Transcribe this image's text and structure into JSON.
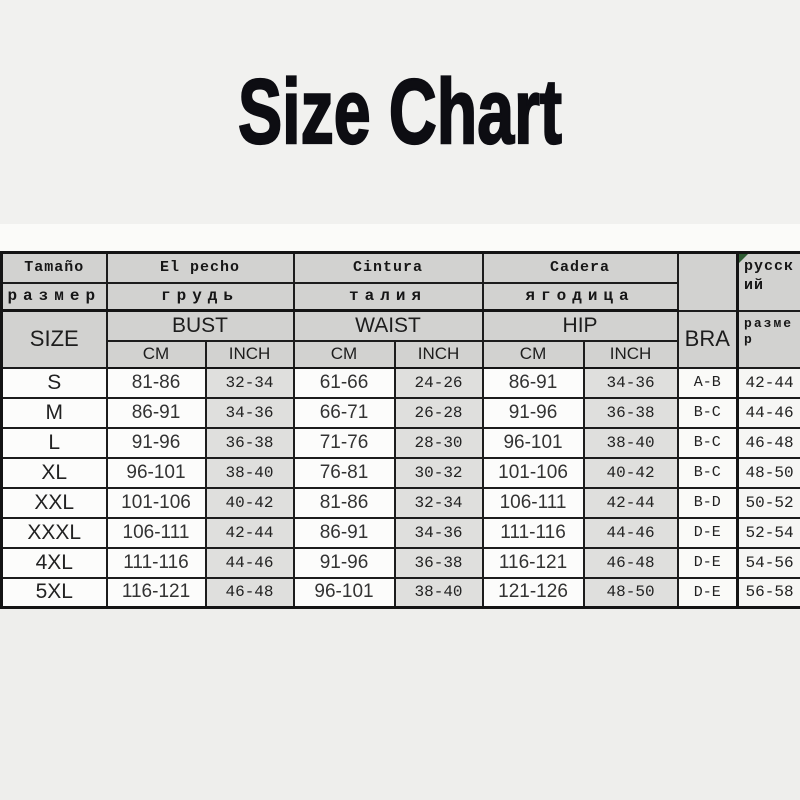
{
  "title": "Size Chart",
  "table": {
    "header": {
      "size_es": "Tamaño",
      "size_ru": "размер",
      "size_en": "SIZE",
      "bust_es": "El pecho",
      "bust_ru": "грудь",
      "bust_en": "BUST",
      "waist_es": "Cintura",
      "waist_ru": "талия",
      "waist_en": "WAIST",
      "hip_es": "Cadera",
      "hip_ru": "ягодица",
      "hip_en": "HIP",
      "bra": "BRA",
      "cm": "CM",
      "inch": "INCH",
      "ru_size_label_top": "русский",
      "ru_size_label_bottom": "размер"
    },
    "rows": [
      {
        "size": "S",
        "bust_cm": "81-86",
        "bust_inch": "32-34",
        "waist_cm": "61-66",
        "waist_inch": "24-26",
        "hip_cm": "86-91",
        "hip_inch": "34-36",
        "bra": "A-B",
        "ru": "42-44"
      },
      {
        "size": "M",
        "bust_cm": "86-91",
        "bust_inch": "34-36",
        "waist_cm": "66-71",
        "waist_inch": "26-28",
        "hip_cm": "91-96",
        "hip_inch": "36-38",
        "bra": "B-C",
        "ru": "44-46"
      },
      {
        "size": "L",
        "bust_cm": "91-96",
        "bust_inch": "36-38",
        "waist_cm": "71-76",
        "waist_inch": "28-30",
        "hip_cm": "96-101",
        "hip_inch": "38-40",
        "bra": "B-C",
        "ru": "46-48"
      },
      {
        "size": "XL",
        "bust_cm": "96-101",
        "bust_inch": "38-40",
        "waist_cm": "76-81",
        "waist_inch": "30-32",
        "hip_cm": "101-106",
        "hip_inch": "40-42",
        "bra": "B-C",
        "ru": "48-50"
      },
      {
        "size": "XXL",
        "bust_cm": "101-106",
        "bust_inch": "40-42",
        "waist_cm": "81-86",
        "waist_inch": "32-34",
        "hip_cm": "106-111",
        "hip_inch": "42-44",
        "bra": "B-D",
        "ru": "50-52"
      },
      {
        "size": "XXXL",
        "bust_cm": "106-111",
        "bust_inch": "42-44",
        "waist_cm": "86-91",
        "waist_inch": "34-36",
        "hip_cm": "111-116",
        "hip_inch": "44-46",
        "bra": "D-E",
        "ru": "52-54"
      },
      {
        "size": "4XL",
        "bust_cm": "111-116",
        "bust_inch": "44-46",
        "waist_cm": "91-96",
        "waist_inch": "36-38",
        "hip_cm": "116-121",
        "hip_inch": "46-48",
        "bra": "D-E",
        "ru": "54-56"
      },
      {
        "size": "5XL",
        "bust_cm": "116-121",
        "bust_inch": "46-48",
        "waist_cm": "96-101",
        "waist_inch": "38-40",
        "hip_cm": "121-126",
        "hip_inch": "48-50",
        "bra": "D-E",
        "ru": "56-58"
      }
    ]
  },
  "colors": {
    "header_bg": "#d2d2d0",
    "inch_cell_bg": "#dfdfdd",
    "cell_bg": "#fcfcfb",
    "border": "#1c1c1c",
    "corner_marker": "#2f5c33",
    "title_text": "#0d0d12"
  }
}
